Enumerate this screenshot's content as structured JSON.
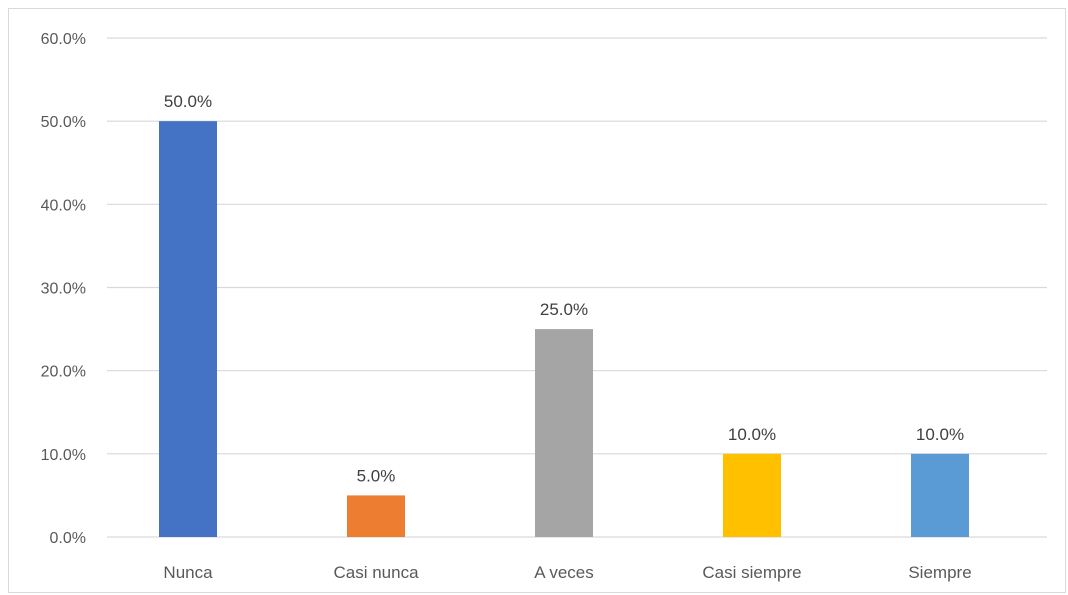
{
  "chart_data": {
    "type": "bar",
    "title": "",
    "xlabel": "",
    "ylabel": "",
    "categories": [
      "Nunca",
      "Casi nunca",
      "A veces",
      "Casi siempre",
      "Siempre"
    ],
    "values": [
      50.0,
      5.0,
      25.0,
      10.0,
      10.0
    ],
    "data_labels": [
      "50.0%",
      "5.0%",
      "25.0%",
      "10.0%",
      "10.0%"
    ],
    "colors": [
      "#4472C4",
      "#ED7D31",
      "#A5A5A5",
      "#FFC000",
      "#5B9BD5"
    ],
    "ylim": [
      0,
      60
    ],
    "yticks": [
      0,
      10,
      20,
      30,
      40,
      50,
      60
    ],
    "ytick_labels": [
      "0.0%",
      "10.0%",
      "20.0%",
      "30.0%",
      "40.0%",
      "50.0%",
      "60.0%"
    ],
    "grid": true,
    "legend": "none",
    "gridline_color": "#d9d9d9"
  }
}
